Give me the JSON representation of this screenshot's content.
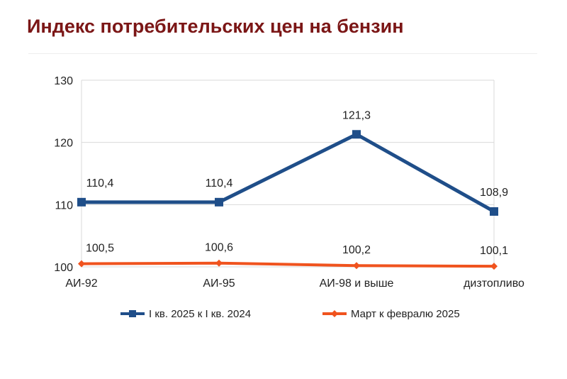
{
  "page": {
    "title": "Индекс потребительских цен на бензин"
  },
  "chart_data": {
    "type": "line",
    "title": "",
    "xlabel": "",
    "ylabel": "",
    "categories": [
      "АИ-92",
      "АИ-95",
      "АИ-98 и выше",
      "дизтопливо"
    ],
    "ylim": [
      100,
      130
    ],
    "yticks": [
      "100",
      "110",
      "120",
      "130"
    ],
    "grid": true,
    "legend_position": "bottom",
    "series": [
      {
        "name": "I кв. 2025 к I кв. 2024",
        "values": [
          110.4,
          110.4,
          121.3,
          108.9
        ],
        "labels": [
          "110,4",
          "110,4",
          "121,3",
          "108,9"
        ],
        "color": "#1f4e89",
        "marker": "square"
      },
      {
        "name": "Март к февралю 2025",
        "values": [
          100.5,
          100.6,
          100.2,
          100.1
        ],
        "labels": [
          "100,5",
          "100,6",
          "100,2",
          "100,1"
        ],
        "color": "#f0531e",
        "marker": "diamond"
      }
    ]
  }
}
